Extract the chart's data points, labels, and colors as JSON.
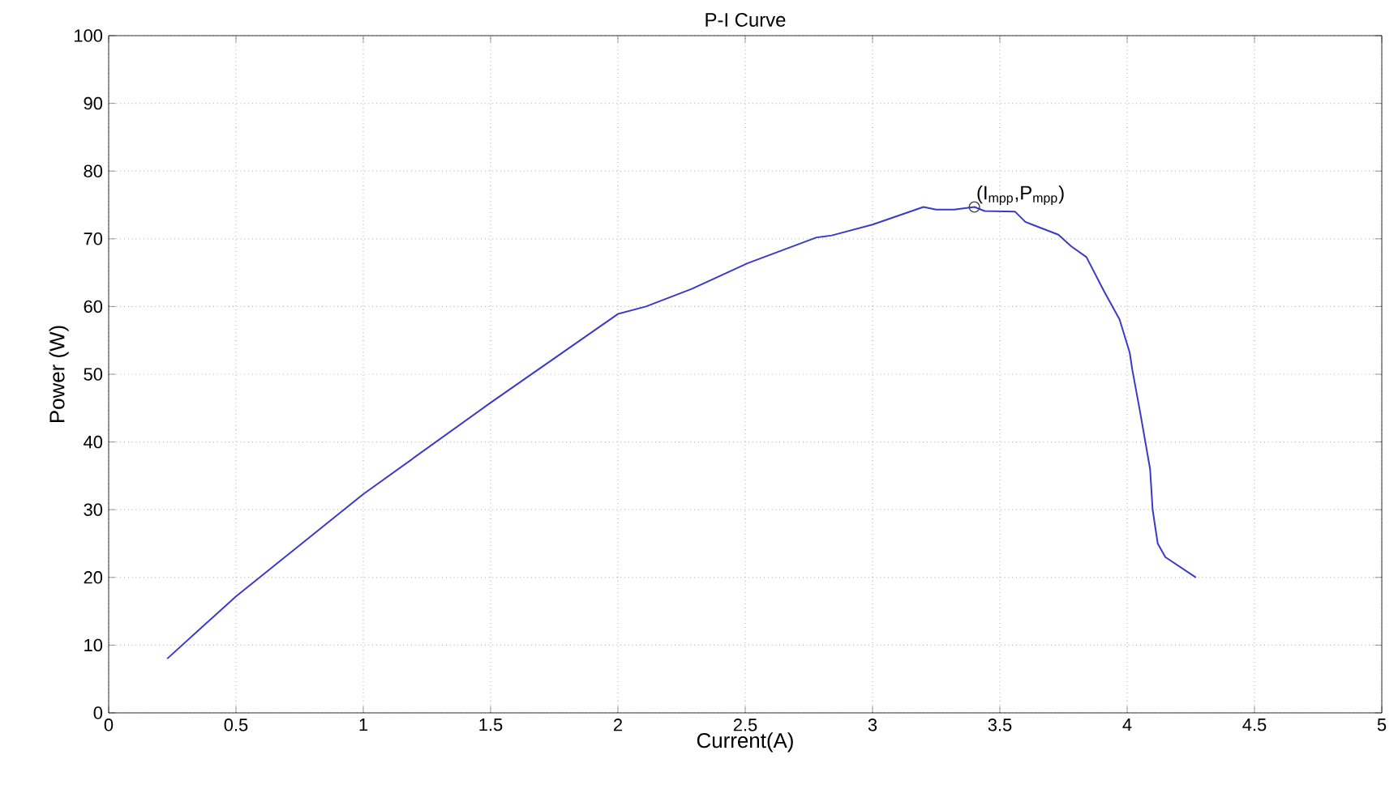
{
  "chart_data": {
    "type": "line",
    "title": "P-I Curve",
    "xlabel": "Current(A)",
    "ylabel": "Power (W)",
    "xlim": [
      0,
      5
    ],
    "ylim": [
      0,
      100
    ],
    "xticks": [
      0,
      0.5,
      1,
      1.5,
      2,
      2.5,
      3,
      3.5,
      4,
      4.5,
      5
    ],
    "yticks": [
      0,
      10,
      20,
      30,
      40,
      50,
      60,
      70,
      80,
      90,
      100
    ],
    "grid": true,
    "line_style": "solid",
    "marker": "none",
    "series": [
      {
        "color": "#3a3ac8",
        "x": [
          0.23,
          0.5,
          1.0,
          1.5,
          2.0,
          2.11,
          2.29,
          2.51,
          2.78,
          2.84,
          3.0,
          3.2,
          3.25,
          3.32,
          3.4,
          3.44,
          3.56,
          3.6,
          3.73,
          3.78,
          3.84,
          3.91,
          3.97,
          4.01,
          4.02,
          4.05,
          4.09,
          4.1,
          4.12,
          4.15,
          4.27
        ],
        "values": [
          8,
          17.2,
          32.3,
          45.8,
          58.9,
          60,
          62.6,
          66.4,
          70.2,
          70.5,
          72.1,
          74.7,
          74.3,
          74.3,
          74.7,
          74.1,
          74,
          72.5,
          70.6,
          68.9,
          67.3,
          62.2,
          58.1,
          53.2,
          50.7,
          44.6,
          36,
          30,
          25,
          23,
          20
        ]
      },
      {
        "type": "scatter",
        "color": "#404040",
        "marker": "circle",
        "x": [
          3.4
        ],
        "values": [
          74.7
        ]
      }
    ],
    "annotations": [
      {
        "text": "(I$_{mpp}$,P$_{mpp}$)",
        "x": 3.4,
        "y": 74.7
      }
    ]
  }
}
